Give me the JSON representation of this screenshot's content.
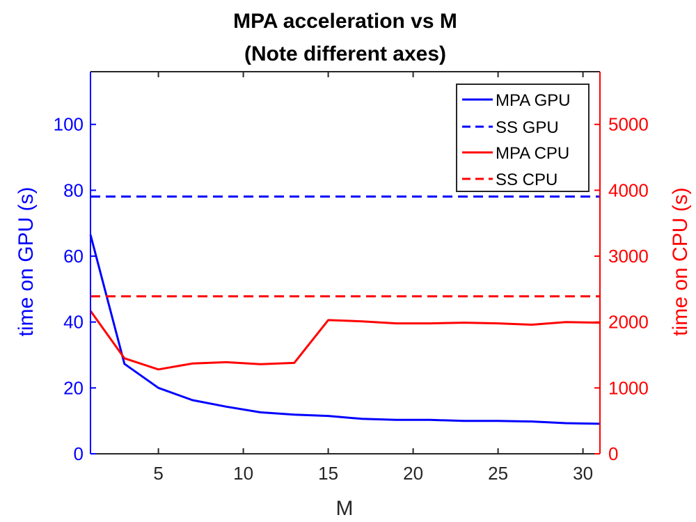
{
  "chart_data": {
    "type": "line",
    "title_lines": [
      "MPA acceleration vs M",
      "(Note different axes)"
    ],
    "xlabel": "M",
    "ylabel_left": "time on GPU (s)",
    "ylabel_right": "time on CPU (s)",
    "xlim": [
      1,
      31
    ],
    "ylim_left": [
      0,
      116
    ],
    "ylim_right": [
      0,
      5800
    ],
    "x_ticks": [
      5,
      10,
      15,
      20,
      25,
      30
    ],
    "y_ticks_left": [
      0,
      20,
      40,
      60,
      80,
      100
    ],
    "y_ticks_right": [
      0,
      1000,
      2000,
      3000,
      4000,
      5000
    ],
    "left_axis_color": "#0000ff",
    "right_axis_color": "#ff0000",
    "grid": false,
    "legend_position": "top-right",
    "series": [
      {
        "name": "MPA GPU",
        "axis": "left",
        "style": "solid",
        "color": "#0000ff",
        "x": [
          1,
          3,
          5,
          7,
          9,
          11,
          13,
          15,
          17,
          19,
          21,
          23,
          25,
          27,
          29,
          31
        ],
        "y": [
          66.5,
          27.3,
          20.0,
          16.3,
          14.3,
          12.6,
          11.9,
          11.5,
          10.6,
          10.3,
          10.3,
          10.0,
          10.0,
          9.8,
          9.3,
          9.1
        ]
      },
      {
        "name": "SS GPU",
        "axis": "left",
        "style": "dashed",
        "color": "#0000ff",
        "x": [
          1,
          31
        ],
        "y": [
          78.1,
          78.1
        ]
      },
      {
        "name": "MPA CPU",
        "axis": "right",
        "style": "solid",
        "color": "#ff0000",
        "x": [
          1,
          3,
          5,
          7,
          9,
          11,
          13,
          15,
          17,
          19,
          21,
          23,
          25,
          27,
          29,
          31
        ],
        "y": [
          2170,
          1450,
          1280,
          1370,
          1390,
          1360,
          1380,
          2030,
          2010,
          1980,
          1980,
          1990,
          1980,
          1960,
          2000,
          1990
        ]
      },
      {
        "name": "SS CPU",
        "axis": "right",
        "style": "dashed",
        "color": "#ff0000",
        "x": [
          1,
          31
        ],
        "y": [
          2390,
          2390
        ]
      }
    ]
  }
}
